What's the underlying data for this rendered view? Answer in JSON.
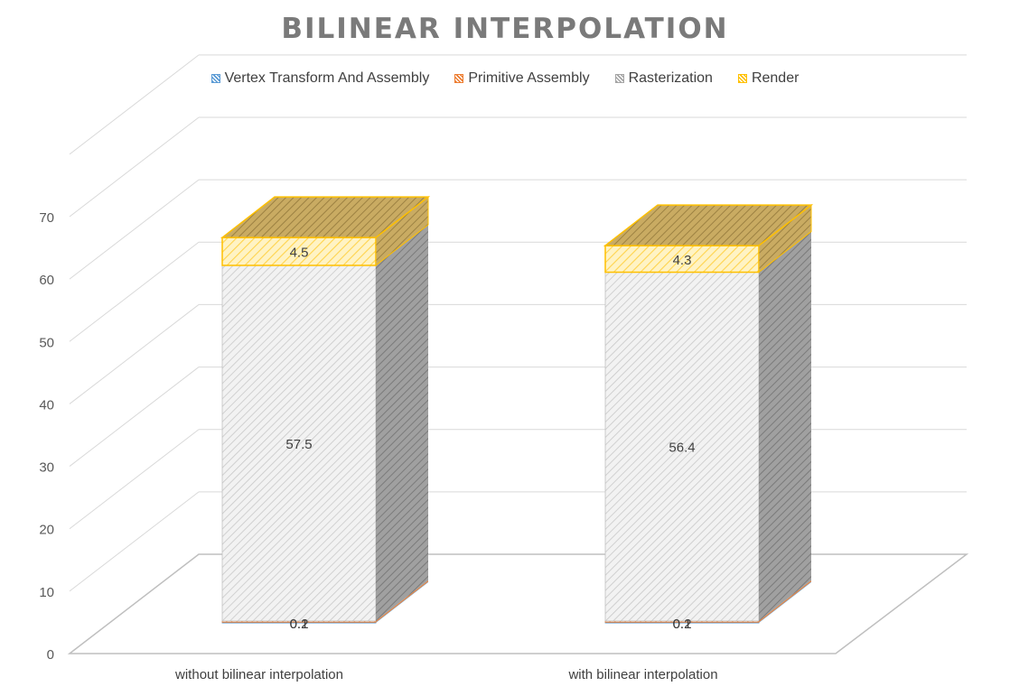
{
  "chart_data": {
    "type": "bar",
    "title": "BILINEAR INTERPOLATION",
    "xlabel": "",
    "ylabel": "",
    "ylim": [
      0,
      70
    ],
    "yticks": [
      0,
      10,
      20,
      30,
      40,
      50,
      60,
      70
    ],
    "stacked": true,
    "three_d": true,
    "grid": true,
    "legend_position": "top",
    "categories": [
      "without bilinear interpolation",
      "with bilinear interpolation"
    ],
    "series": [
      {
        "name": "Vertex Transform And Assembly",
        "values": [
          0.1,
          0.1
        ],
        "labels": [
          "0.1",
          "0.1"
        ],
        "color": "#5b9bd5"
      },
      {
        "name": "Primitive Assembly",
        "values": [
          0.2,
          0.2
        ],
        "labels": [
          "0.2",
          "0.2"
        ],
        "color": "#ed7d31"
      },
      {
        "name": "Rasterization",
        "values": [
          57.5,
          56.4
        ],
        "labels": [
          "57.5",
          "56.4"
        ],
        "color": "#a5a5a5"
      },
      {
        "name": "Render",
        "values": [
          4.5,
          4.3
        ],
        "labels": [
          "4.5",
          "4.3"
        ],
        "color": "#ffc000"
      }
    ]
  }
}
